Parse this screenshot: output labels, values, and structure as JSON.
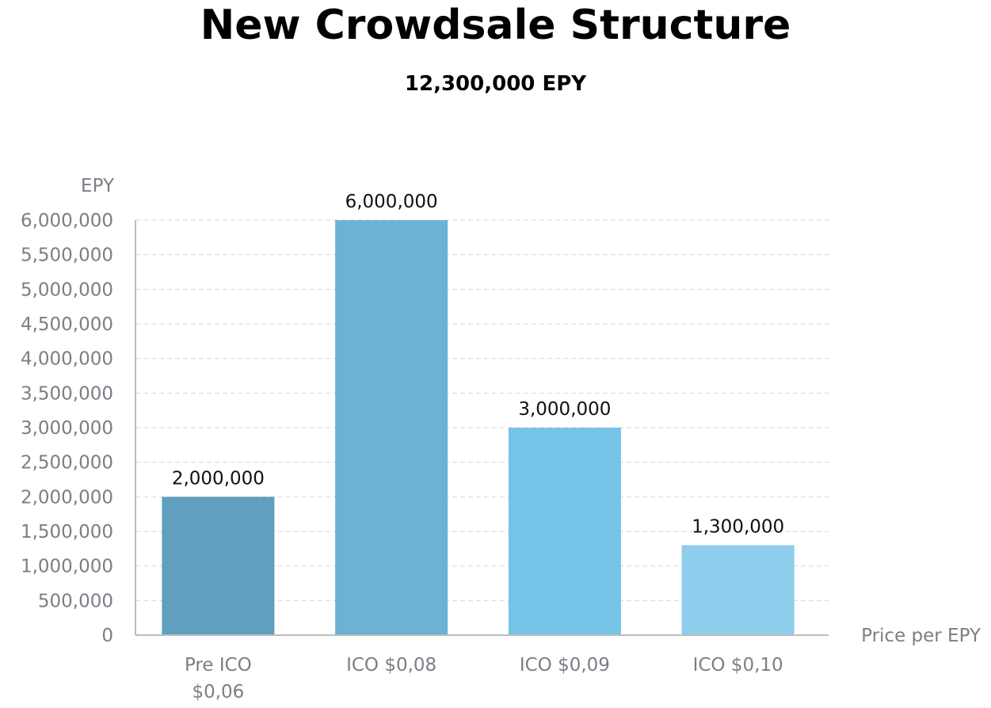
{
  "chart_data": {
    "type": "bar",
    "title": "New Crowdsale Structure",
    "subtitle": "12,300,000 EPY",
    "ylabel": "EPY",
    "xlabel": "Price per EPY",
    "categories": [
      [
        "Pre ICO",
        "$0,06"
      ],
      [
        "ICO $0,08"
      ],
      [
        "ICO $0,09"
      ],
      [
        "ICO $0,10"
      ]
    ],
    "values": [
      2000000,
      6000000,
      3000000,
      1300000
    ],
    "value_labels": [
      "2,000,000",
      "6,000,000",
      "3,000,000",
      "1,300,000"
    ],
    "ylim": [
      0,
      6000000
    ],
    "yticks": [
      0,
      500000,
      1000000,
      1500000,
      2000000,
      2500000,
      3000000,
      3500000,
      4000000,
      4500000,
      5000000,
      5500000,
      6000000
    ],
    "ytick_labels": [
      "0",
      "500,000",
      "1,000,000",
      "1,500,000",
      "2,000,000",
      "2,500,000",
      "3,000,000",
      "3,500,000",
      "4,000,000",
      "4,500,000",
      "5,000,000",
      "5,500,000",
      "6,000,000"
    ],
    "grid": true,
    "legend": "none",
    "colors": {
      "bars": [
        "#619fbf",
        "#6cb2d4",
        "#76c3e8",
        "#8ecdeb"
      ],
      "grid": "#d6d6d6",
      "axis": "#bcbcbc",
      "tick_text": "#7d7d85",
      "label_text": "#111111"
    }
  }
}
